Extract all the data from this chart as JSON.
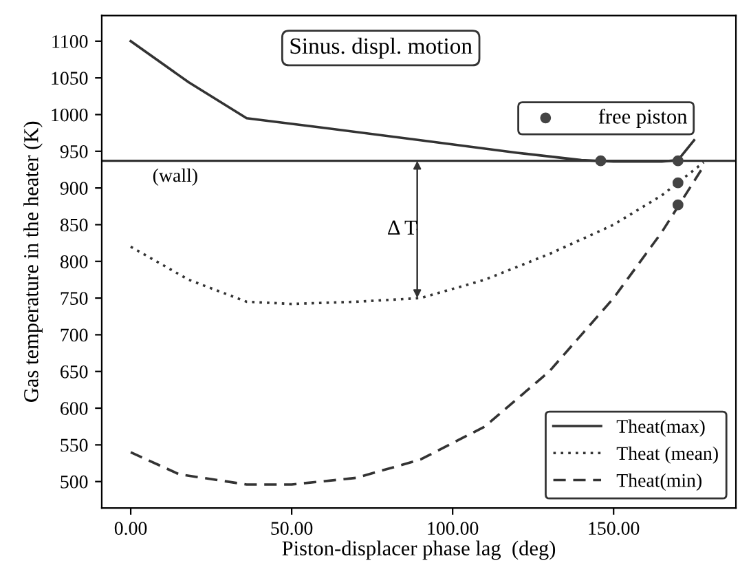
{
  "chart_data": {
    "type": "line",
    "xlabel": "Piston-displacer phase lag  (deg)",
    "ylabel": "Gas temperature in the heater (K)",
    "xlim": [
      -9,
      188
    ],
    "ylim": [
      464,
      1135
    ],
    "xticks": [
      {
        "value": 0,
        "label": "0.00"
      },
      {
        "value": 50,
        "label": "50.00"
      },
      {
        "value": 100,
        "label": "100.00"
      },
      {
        "value": 150,
        "label": "150.00"
      }
    ],
    "yticks": [
      500,
      550,
      600,
      650,
      700,
      750,
      800,
      850,
      900,
      950,
      1000,
      1050,
      1100
    ],
    "legend": "bottom right",
    "series": [
      {
        "name": "Theat(max)",
        "color": "#333333",
        "line_style": "solid",
        "x": [
          0,
          18,
          36,
          60,
          90,
          120,
          140,
          150,
          165,
          170,
          175
        ],
        "values": [
          1100,
          1044,
          995,
          982,
          965,
          948,
          938,
          936,
          936,
          938,
          965
        ]
      },
      {
        "name": "Theat (mean)",
        "color": "#333333",
        "line_style": "dotted",
        "x": [
          0,
          18,
          36,
          50,
          70,
          90,
          110,
          130,
          150,
          165,
          178
        ],
        "values": [
          820,
          775,
          745,
          742,
          745,
          750,
          775,
          810,
          850,
          890,
          935
        ]
      },
      {
        "name": "Theat(min)",
        "color": "#333333",
        "line_style": "dashed",
        "x": [
          0,
          15,
          36,
          50,
          70,
          90,
          110,
          130,
          150,
          165,
          178
        ],
        "values": [
          540,
          510,
          496,
          496,
          505,
          530,
          575,
          650,
          750,
          840,
          930
        ]
      },
      {
        "name": "free piston",
        "type": "scatter",
        "marker": "circle",
        "color": "#444444",
        "x": [
          146,
          170,
          170,
          170
        ],
        "values": [
          937,
          937,
          907,
          877
        ]
      }
    ],
    "ref_lines": [
      {
        "axis": "y",
        "value": 937,
        "label": "(wall)",
        "color": "#333333"
      }
    ],
    "annotations": [
      "Sinus. displ. motion",
      {
        "text": "Δ T",
        "x": 89,
        "y": 750
      }
    ]
  }
}
